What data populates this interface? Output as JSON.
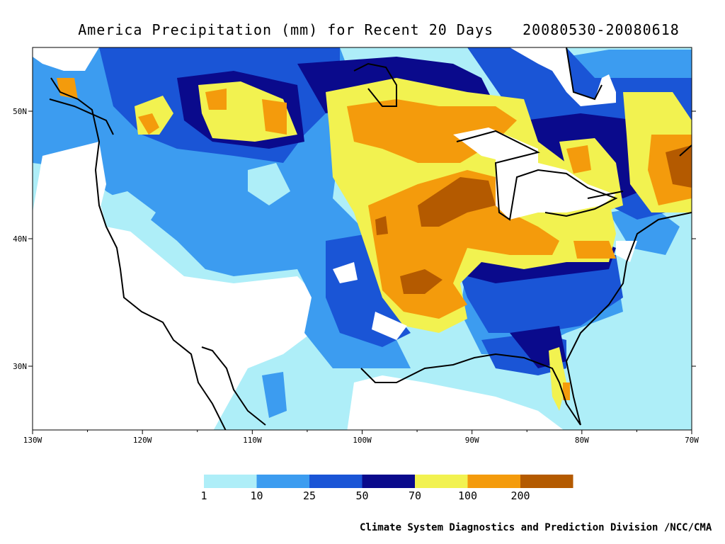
{
  "title": {
    "main": "America Precipitation (mm) for Recent 20 Days",
    "dates": "20080530-20080618"
  },
  "map": {
    "lon_range": [
      -130,
      -70
    ],
    "lat_range": [
      25,
      55
    ],
    "x_ticks": [
      "130W",
      "120W",
      "110W",
      "100W",
      "90W",
      "80W",
      "70W"
    ],
    "y_ticks": [
      "30N",
      "40N",
      "50N"
    ]
  },
  "legend": {
    "colors": [
      "#aeeef8",
      "#3c9cf0",
      "#1a55d6",
      "#0a0a8c",
      "#f2f250",
      "#f49b0c",
      "#b45a00"
    ],
    "labels": [
      "1",
      "10",
      "25",
      "50",
      "70",
      "100",
      "200"
    ]
  },
  "credit": "Climate System Diagnostics and Prediction Division /NCC/CMA"
}
